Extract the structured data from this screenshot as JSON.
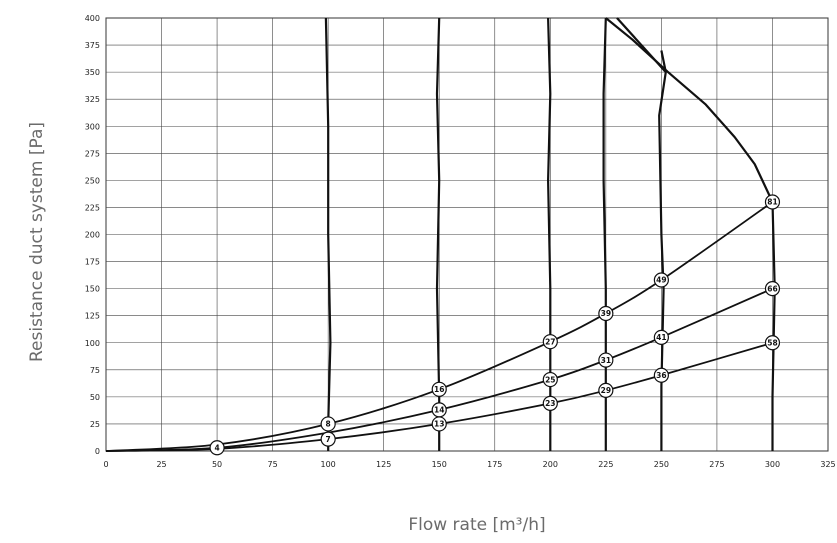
{
  "chart_data": {
    "type": "line",
    "title": "",
    "xlabel": "Flow rate [m³/h]",
    "ylabel": "Resistance duct system [Pa]",
    "xlim": [
      0,
      325
    ],
    "ylim": [
      0,
      400
    ],
    "x_ticks": [
      "0",
      "25",
      "50",
      "75",
      "100",
      "125",
      "150",
      "175",
      "200",
      "225",
      "250",
      "275",
      "300",
      "325"
    ],
    "y_ticks": [
      "0",
      "25",
      "50",
      "75",
      "100",
      "125",
      "150",
      "175",
      "200",
      "225",
      "250",
      "275",
      "300",
      "325",
      "350",
      "375",
      "400"
    ],
    "grid": true,
    "series": [
      {
        "points": [
          [
            0,
            0
          ],
          [
            50,
            6
          ],
          [
            100,
            25
          ],
          [
            150,
            57
          ],
          [
            200,
            101
          ],
          [
            225,
            127
          ],
          [
            250,
            158
          ],
          [
            300,
            230
          ]
        ]
      },
      {
        "points": [
          [
            0,
            0
          ],
          [
            50,
            3
          ],
          [
            100,
            17
          ],
          [
            150,
            38
          ],
          [
            200,
            66
          ],
          [
            225,
            84
          ],
          [
            250,
            105
          ],
          [
            300,
            150
          ]
        ]
      },
      {
        "points": [
          [
            0,
            0
          ],
          [
            50,
            2
          ],
          [
            100,
            11
          ],
          [
            150,
            25
          ],
          [
            200,
            44
          ],
          [
            225,
            56
          ],
          [
            250,
            70
          ],
          [
            300,
            100
          ]
        ]
      }
    ],
    "vertical_curves": [
      [
        [
          100,
          0
        ],
        [
          100,
          25
        ],
        [
          101,
          100
        ],
        [
          100,
          200
        ],
        [
          100,
          300
        ],
        [
          99,
          400
        ]
      ],
      [
        [
          150,
          0
        ],
        [
          150,
          50
        ],
        [
          149,
          150
        ],
        [
          150,
          250
        ],
        [
          149,
          330
        ],
        [
          150,
          400
        ]
      ],
      [
        [
          200,
          0
        ],
        [
          200,
          50
        ],
        [
          200,
          150
        ],
        [
          199,
          250
        ],
        [
          200,
          330
        ],
        [
          199,
          400
        ]
      ],
      [
        [
          225,
          0
        ],
        [
          225,
          50
        ],
        [
          225,
          150
        ],
        [
          224,
          250
        ],
        [
          224,
          330
        ],
        [
          225,
          400
        ]
      ],
      [
        [
          250,
          0
        ],
        [
          250,
          60
        ],
        [
          251,
          150
        ],
        [
          250,
          200
        ],
        [
          249,
          310
        ],
        [
          252,
          350
        ],
        [
          250,
          370
        ]
      ],
      [
        [
          300,
          0
        ],
        [
          300,
          50
        ],
        [
          301,
          150
        ],
        [
          300,
          230
        ],
        [
          292,
          265
        ],
        [
          283,
          290
        ],
        [
          270,
          320
        ],
        [
          253,
          350
        ],
        [
          237,
          380
        ],
        [
          225,
          400
        ]
      ]
    ],
    "max_curve": [
      [
        230,
        400
      ],
      [
        252,
        350
      ]
    ],
    "annotations": [
      {
        "x": 50,
        "y": 3,
        "label": "4"
      },
      {
        "x": 100,
        "y": 25,
        "label": "8"
      },
      {
        "x": 100,
        "y": 11,
        "label": "7"
      },
      {
        "x": 150,
        "y": 57,
        "label": "16"
      },
      {
        "x": 150,
        "y": 38,
        "label": "14"
      },
      {
        "x": 150,
        "y": 25,
        "label": "13"
      },
      {
        "x": 200,
        "y": 101,
        "label": "27"
      },
      {
        "x": 200,
        "y": 66,
        "label": "25"
      },
      {
        "x": 200,
        "y": 44,
        "label": "23"
      },
      {
        "x": 225,
        "y": 127,
        "label": "39"
      },
      {
        "x": 225,
        "y": 84,
        "label": "31"
      },
      {
        "x": 225,
        "y": 56,
        "label": "29"
      },
      {
        "x": 250,
        "y": 158,
        "label": "49"
      },
      {
        "x": 250,
        "y": 105,
        "label": "41"
      },
      {
        "x": 250,
        "y": 70,
        "label": "36"
      },
      {
        "x": 300,
        "y": 230,
        "label": "81"
      },
      {
        "x": 300,
        "y": 150,
        "label": "66"
      },
      {
        "x": 300,
        "y": 100,
        "label": "58"
      }
    ]
  }
}
